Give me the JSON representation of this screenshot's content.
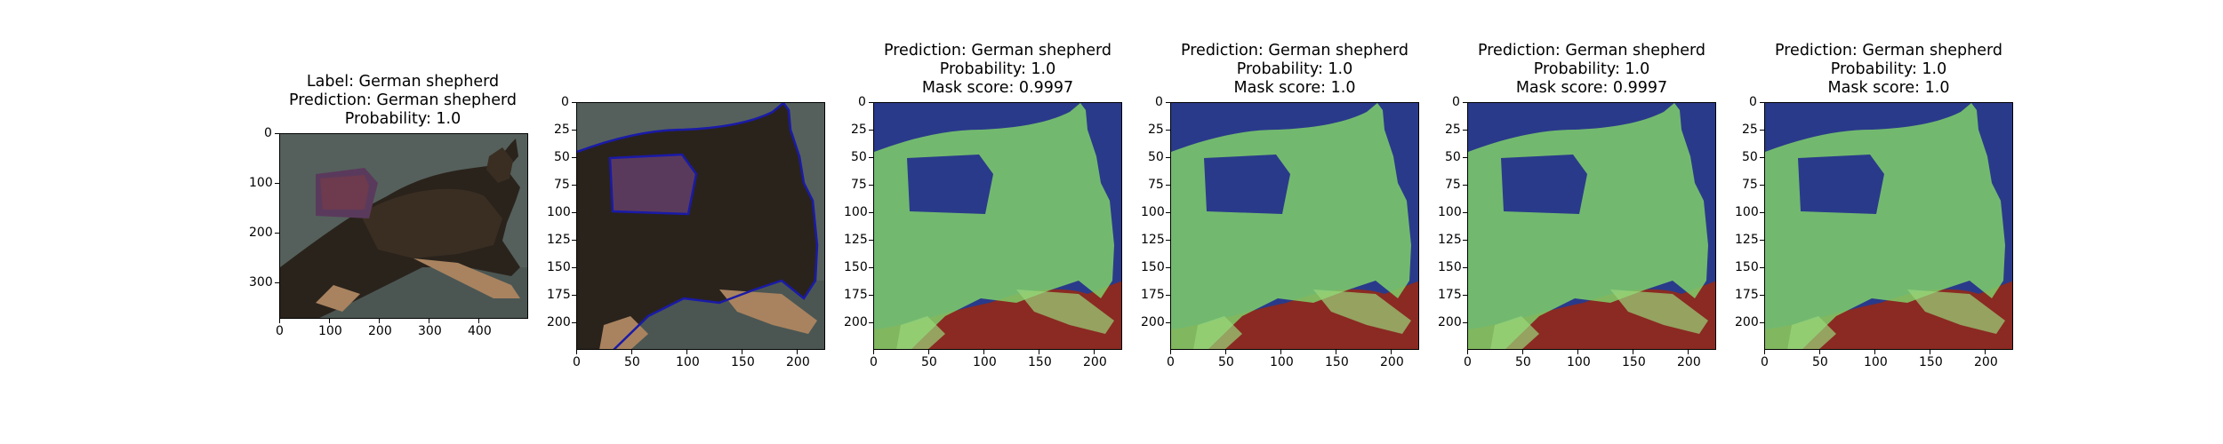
{
  "figure": {
    "panels": [
      {
        "id": "original",
        "title_lines": [
          "Label: German shepherd",
          "Prediction: German shepherd",
          "Probability: 1.0"
        ],
        "x_ticks": [
          "0",
          "100",
          "200",
          "300",
          "400"
        ],
        "y_ticks": [
          "0",
          "100",
          "200",
          "300"
        ]
      },
      {
        "id": "contour",
        "title_lines": [],
        "x_ticks": [
          "0",
          "50",
          "100",
          "150",
          "200"
        ],
        "y_ticks": [
          "0",
          "25",
          "50",
          "75",
          "100",
          "125",
          "150",
          "175",
          "200"
        ]
      },
      {
        "id": "mask-1",
        "title_lines": [
          "Prediction: German shepherd",
          "Probability: 1.0",
          "Mask score: 0.9997"
        ],
        "x_ticks": [
          "0",
          "50",
          "100",
          "150",
          "200"
        ],
        "y_ticks": [
          "0",
          "25",
          "50",
          "75",
          "100",
          "125",
          "150",
          "175",
          "200"
        ]
      },
      {
        "id": "mask-2",
        "title_lines": [
          "Prediction: German shepherd",
          "Probability: 1.0",
          "Mask score: 1.0"
        ],
        "x_ticks": [
          "0",
          "50",
          "100",
          "150",
          "200"
        ],
        "y_ticks": [
          "0",
          "25",
          "50",
          "75",
          "100",
          "125",
          "150",
          "175",
          "200"
        ]
      },
      {
        "id": "mask-3",
        "title_lines": [
          "Prediction: German shepherd",
          "Probability: 1.0",
          "Mask score: 0.9997"
        ],
        "x_ticks": [
          "0",
          "50",
          "100",
          "150",
          "200"
        ],
        "y_ticks": [
          "0",
          "25",
          "50",
          "75",
          "100",
          "125",
          "150",
          "175",
          "200"
        ]
      },
      {
        "id": "mask-4",
        "title_lines": [
          "Prediction: German shepherd",
          "Probability: 1.0",
          "Mask score: 1.0"
        ],
        "x_ticks": [
          "0",
          "50",
          "100",
          "150",
          "200"
        ],
        "y_ticks": [
          "0",
          "25",
          "50",
          "75",
          "100",
          "125",
          "150",
          "175",
          "200"
        ]
      }
    ],
    "colors": {
      "background_rug": "#4a5552",
      "dog_dark": "#2a231c",
      "dog_tan": "#a9835f",
      "sweater": "#5a3a5c",
      "mask_green": "#7fd06a",
      "mask_blue": "#2a3a8a",
      "mask_red": "#8a2a22",
      "contour_blue": "#1a1aa8"
    }
  }
}
